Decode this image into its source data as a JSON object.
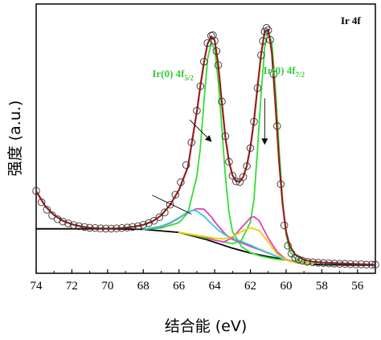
{
  "chart_data": {
    "type": "line",
    "title": "",
    "corner_label": "Ir 4f",
    "xlabel": "结合能 (eV)",
    "ylabel": "强度 (a.u.)",
    "x_reversed": true,
    "xlim": [
      74,
      55
    ],
    "ylim": [
      0,
      100
    ],
    "x_ticks": [
      74,
      72,
      70,
      68,
      66,
      64,
      62,
      60,
      58,
      56
    ],
    "y_ticks_shown": false,
    "grid": false,
    "legend": "none",
    "annotations": [
      {
        "text": "Ir(0) 4f",
        "sub": "5/2",
        "x": 63.9,
        "y": 49,
        "color": "#33cc33",
        "arrow_from": [
          65.4,
          57
        ],
        "arrow_to": [
          64.2,
          49
        ]
      },
      {
        "text": "Ir(0) 4f",
        "sub": "7/2",
        "x": 61.1,
        "y": 49,
        "color": "#33cc33",
        "arrow_from": [
          61.2,
          65
        ],
        "arrow_to": [
          61.2,
          48
        ]
      }
    ],
    "unlabeled_arrow": {
      "from": [
        67.5,
        29
      ],
      "to": [
        65.3,
        22
      ]
    },
    "series": [
      {
        "role": "experimental data (open circles)",
        "color": "#333333",
        "x": [
          74,
          73.7,
          73.4,
          73.1,
          72.8,
          72.5,
          72.2,
          71.9,
          71.6,
          71.3,
          71,
          70.7,
          70.4,
          70.1,
          69.8,
          69.5,
          69.2,
          68.9,
          68.6,
          68.3,
          68,
          67.7,
          67.4,
          67.1,
          66.8,
          66.5,
          66.2,
          65.9,
          65.6,
          65.3,
          65,
          64.8,
          64.6,
          64.4,
          64.2,
          64.1,
          64,
          63.9,
          63.8,
          63.6,
          63.4,
          63.2,
          63,
          62.8,
          62.6,
          62.4,
          62.2,
          62,
          61.8,
          61.6,
          61.4,
          61.3,
          61.2,
          61.1,
          61,
          60.9,
          60.7,
          60.5,
          60.3,
          60.1,
          59.9,
          59.7,
          59.5,
          59.3,
          59.1,
          58.8,
          58.5,
          58.2,
          57.9,
          57.6,
          57.3,
          57,
          56.7,
          56.4,
          56.1,
          55.8,
          55.5,
          55.2,
          55
        ],
        "y": [
          30.6,
          26.4,
          23.6,
          21.5,
          20.1,
          19.2,
          18.5,
          17.9,
          17.5,
          17.2,
          16.9,
          16.8,
          16.7,
          16.6,
          16.6,
          16.7,
          16.8,
          17,
          17.2,
          17.5,
          18,
          18.6,
          19.5,
          20.8,
          22.6,
          25.5,
          29.2,
          33.8,
          40.2,
          48.6,
          60.4,
          69.5,
          78.6,
          85.5,
          88.2,
          88.4,
          86.3,
          82.5,
          77.3,
          63.8,
          50.9,
          41.4,
          36.2,
          34.1,
          33.9,
          35.8,
          39.8,
          46.5,
          56.3,
          68.8,
          81,
          86.3,
          89.8,
          91.1,
          90.3,
          86.7,
          73.9,
          54.7,
          33.1,
          17.8,
          10.2,
          7.3,
          5.8,
          5.1,
          4.7,
          4.3,
          4.1,
          3.9,
          3.8,
          3.7,
          3.6,
          3.5,
          3.5,
          3.4,
          3.3,
          3.3,
          3.2,
          3.2,
          3.2
        ]
      },
      {
        "role": "overall fit",
        "color": "#9b1c1c",
        "x": [
          74,
          73.5,
          73,
          72.5,
          72,
          71.5,
          71,
          70.5,
          70,
          69.5,
          69,
          68.5,
          68,
          67.5,
          67,
          66.5,
          66,
          65.5,
          65,
          64.8,
          64.6,
          64.4,
          64.2,
          64,
          63.8,
          63.6,
          63.4,
          63.2,
          63,
          62.8,
          62.6,
          62.4,
          62.2,
          62,
          61.8,
          61.6,
          61.4,
          61.2,
          61,
          60.8,
          60.6,
          60.4,
          60.2,
          60,
          59.8,
          59.5,
          59,
          58.5,
          58,
          57,
          56,
          55
        ],
        "y": [
          30.5,
          25,
          21.6,
          19.5,
          18.2,
          17.4,
          16.9,
          16.7,
          16.6,
          16.7,
          16.9,
          17.3,
          18,
          19.2,
          21.5,
          25.4,
          31,
          39.5,
          60,
          69.6,
          78.4,
          85.2,
          88,
          86.5,
          77.5,
          63.5,
          50.5,
          41.5,
          36.3,
          34.2,
          34,
          35.8,
          39.9,
          46.8,
          56.6,
          69.2,
          81.4,
          89.7,
          90.5,
          82,
          63,
          42,
          26,
          15.5,
          10.2,
          7,
          5,
          4.3,
          4,
          3.7,
          3.4,
          3.2
        ]
      },
      {
        "role": "baseline (black)",
        "color": "#000000",
        "x": [
          74,
          72,
          70,
          68,
          66,
          64.5,
          63,
          62,
          61,
          60,
          59.5,
          59,
          58,
          57,
          56,
          55
        ],
        "y": [
          16.5,
          16.5,
          16.5,
          16.3,
          15.2,
          12.6,
          9.3,
          7.5,
          6.2,
          5,
          4.2,
          3.5,
          3.2,
          3.1,
          3.0,
          3.0
        ]
      },
      {
        "role": "Ir(0) 4f5/2 component",
        "color": "#33dd33",
        "x": [
          68,
          67,
          66,
          65.5,
          65,
          64.8,
          64.6,
          64.4,
          64.2,
          64,
          63.8,
          63.6,
          63.4,
          63.2,
          63,
          62.5,
          62,
          61.5,
          61,
          60.5,
          60
        ],
        "y": [
          16.3,
          16.8,
          18.8,
          22.5,
          36,
          46.5,
          64,
          79.5,
          85.5,
          83.3,
          71.5,
          54,
          36,
          22.5,
          15.5,
          10,
          7.7,
          6.5,
          5.8,
          5.2,
          4.9
        ]
      },
      {
        "role": "Ir(0) 4f7/2 component",
        "color": "#33dd33",
        "x": [
          66,
          65,
          64,
          63,
          62.5,
          62,
          61.8,
          61.6,
          61.4,
          61.2,
          61,
          60.8,
          60.6,
          60.4,
          60.2,
          60,
          59.8,
          59.5,
          59,
          58.5
        ],
        "y": [
          15.2,
          13.8,
          12.3,
          11,
          12.2,
          19,
          27.5,
          46,
          67,
          84,
          89.9,
          85.5,
          69,
          47,
          27,
          14.5,
          8.4,
          5.5,
          4,
          3.5
        ]
      },
      {
        "role": "component (magenta)",
        "color": "#e040c0",
        "x": [
          68,
          67,
          66.5,
          66,
          65.5,
          65,
          64.6,
          64.2,
          63.8,
          63.4,
          63,
          62.5,
          62,
          61.5,
          61,
          60.5,
          60
        ],
        "y": [
          16.3,
          17.3,
          18.6,
          20.5,
          22.6,
          24,
          23.8,
          21,
          17.5,
          14.5,
          12.6,
          11.3,
          10,
          8.8,
          7.5,
          6.2,
          5
        ]
      },
      {
        "role": "component (cyan)",
        "color": "#33cccc",
        "x": [
          68,
          67,
          66.5,
          66,
          65.5,
          65.2,
          65,
          64.6,
          64.2,
          63.8,
          63.4,
          63,
          62.5,
          62,
          61.5,
          61,
          60.5,
          60
        ],
        "y": [
          16.3,
          17.5,
          18.8,
          20.7,
          22.8,
          23.4,
          23.1,
          21.2,
          18.5,
          16,
          14.2,
          13,
          11.8,
          10.5,
          9,
          7.6,
          6.2,
          5
        ]
      },
      {
        "role": "component (magenta, low BE)",
        "color": "#e040c0",
        "x": [
          66,
          65,
          64.5,
          64,
          63.5,
          63,
          62.5,
          62,
          61.8,
          61.5,
          61,
          60.5,
          60,
          59.5,
          59,
          58.5
        ],
        "y": [
          15.2,
          14,
          13.4,
          12.3,
          11.6,
          13.2,
          17,
          20.6,
          21,
          19.5,
          13,
          8,
          5.1,
          4.1,
          3.6,
          3.3
        ]
      },
      {
        "role": "component (yellow)",
        "color": "#e6d000",
        "x": [
          66,
          65,
          64.5,
          64,
          63.5,
          63,
          62.5,
          62,
          61.5,
          61,
          60.5,
          60,
          59.5,
          59,
          58.5
        ],
        "y": [
          15.2,
          14.1,
          13.6,
          13,
          12.8,
          13.6,
          15.5,
          16.9,
          15.9,
          11.6,
          7.2,
          4.9,
          4,
          3.6,
          3.3
        ]
      }
    ]
  }
}
